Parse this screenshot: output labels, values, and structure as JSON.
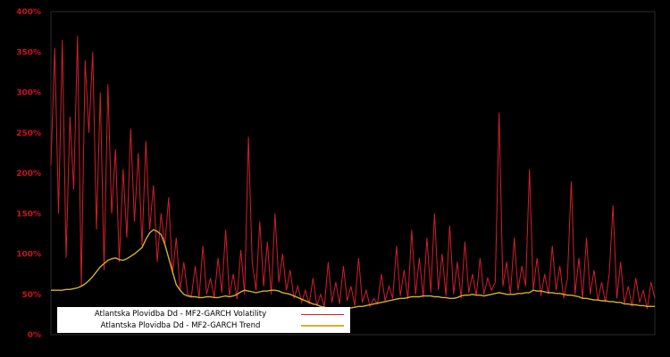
{
  "page": {
    "background_color": "#000000"
  },
  "chart_data": {
    "type": "line",
    "title": "",
    "xlabel": "",
    "ylabel": "",
    "grid": false,
    "background": "#000000",
    "axis_label_color": "#cc1122",
    "legend_position": "bottom-left",
    "ylim": [
      0,
      400
    ],
    "y_ticks": [
      "0%",
      "50%",
      "100%",
      "150%",
      "200%",
      "250%",
      "300%",
      "350%",
      "400%"
    ],
    "y_tick_values": [
      0,
      50,
      100,
      150,
      200,
      250,
      300,
      350,
      400
    ],
    "x_ticks": [],
    "series": [
      {
        "name": "Atlantska Plovidba Dd - MF2-GARCH Volatility",
        "color": "#d21f2b",
        "width": 1,
        "unit": "percent",
        "values": [
          210,
          355,
          150,
          365,
          95,
          270,
          180,
          370,
          60,
          340,
          250,
          350,
          130,
          300,
          80,
          310,
          150,
          230,
          90,
          205,
          120,
          255,
          140,
          225,
          110,
          240,
          130,
          185,
          90,
          150,
          110,
          170,
          75,
          120,
          55,
          90,
          50,
          48,
          85,
          45,
          110,
          50,
          70,
          46,
          95,
          52,
          130,
          48,
          75,
          44,
          105,
          50,
          245,
          90,
          55,
          140,
          60,
          115,
          50,
          150,
          65,
          100,
          55,
          80,
          45,
          60,
          40,
          55,
          38,
          70,
          36,
          50,
          35,
          90,
          40,
          65,
          38,
          85,
          42,
          60,
          36,
          95,
          40,
          55,
          35,
          45,
          38,
          75,
          42,
          60,
          45,
          110,
          48,
          80,
          44,
          130,
          50,
          95,
          46,
          120,
          52,
          150,
          55,
          100,
          48,
          135,
          50,
          90,
          45,
          115,
          52,
          75,
          48,
          95,
          50,
          70,
          55,
          65,
          275,
          60,
          90,
          50,
          120,
          55,
          85,
          60,
          205,
          55,
          95,
          48,
          75,
          50,
          110,
          55,
          85,
          45,
          70,
          190,
          50,
          95,
          45,
          120,
          50,
          80,
          42,
          65,
          40,
          75,
          160,
          45,
          90,
          38,
          60,
          35,
          70,
          40,
          55,
          32,
          65,
          45
        ]
      },
      {
        "name": "Atlantska Plovidba Dd - MF2-GARCH Trend",
        "color": "#d4b02c",
        "width": 1.4,
        "unit": "percent",
        "values": [
          55,
          55,
          55,
          55,
          56,
          56,
          57,
          58,
          60,
          63,
          67,
          72,
          78,
          84,
          88,
          92,
          94,
          95,
          93,
          92,
          94,
          97,
          100,
          104,
          108,
          118,
          126,
          130,
          128,
          124,
          112,
          95,
          78,
          62,
          55,
          50,
          48,
          47,
          47,
          46,
          46,
          47,
          47,
          46,
          46,
          47,
          48,
          47,
          48,
          50,
          53,
          55,
          54,
          53,
          52,
          53,
          54,
          54,
          55,
          55,
          54,
          52,
          51,
          50,
          48,
          46,
          44,
          42,
          40,
          38,
          37,
          35,
          34,
          33,
          32,
          32,
          32,
          32,
          33,
          33,
          34,
          35,
          35,
          36,
          37,
          38,
          39,
          40,
          41,
          42,
          43,
          44,
          45,
          45,
          46,
          47,
          47,
          47,
          48,
          48,
          48,
          47,
          47,
          46,
          46,
          45,
          45,
          46,
          48,
          49,
          49,
          50,
          49,
          49,
          48,
          49,
          50,
          51,
          52,
          51,
          50,
          50,
          50,
          51,
          51,
          52,
          52,
          55,
          54,
          54,
          53,
          52,
          52,
          51,
          51,
          50,
          49,
          49,
          48,
          47,
          45,
          45,
          44,
          43,
          43,
          42,
          42,
          41,
          41,
          40,
          40,
          38,
          38,
          37,
          37,
          36,
          36,
          35,
          35,
          35
        ]
      }
    ]
  },
  "legend": {
    "items": [
      {
        "label": "Atlantska Plovidba Dd - MF2-GARCH Volatility",
        "color": "#d21f2b"
      },
      {
        "label": "Atlantska Plovidba Dd - MF2-GARCH Trend",
        "color": "#d4b02c"
      }
    ]
  }
}
